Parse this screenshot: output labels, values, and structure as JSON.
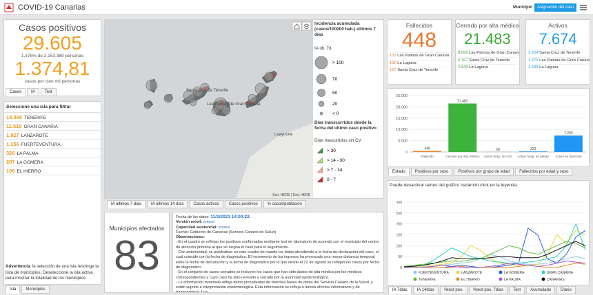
{
  "header": {
    "title": "COVID-19 Canarias",
    "filter_label": "Municipio",
    "button": "Asignación del caso"
  },
  "summary": {
    "title": "Casos positivos",
    "total": "29.605",
    "share": "1,375% de 2.153.389 personas",
    "rate": "1.374,81",
    "rate_label": "casos por cien mil personas",
    "tabs": [
      "Casos",
      "IA",
      "Test"
    ]
  },
  "islands": {
    "title": "Seleccione una isla para filtrar",
    "rows": [
      {
        "value": "14.368",
        "name": "TENERIFE"
      },
      {
        "value": "11.515",
        "name": "GRAN CANARIA"
      },
      {
        "value": "1.927",
        "name": "LANZAROTE"
      },
      {
        "value": "1.156",
        "name": "FUERTEVENTURA"
      },
      {
        "value": "326",
        "name": "LA PALMA"
      },
      {
        "value": "207",
        "name": "LA GOMERA"
      },
      {
        "value": "106",
        "name": "EL HIERRO"
      }
    ],
    "note_label": "Advertencia",
    "note": ": la selección de una isla restringe la lista de municipios. Deseleccione la isla activa para mostrar la totalidad de los municipios.",
    "tabs": [
      "Isla",
      "Municipios"
    ]
  },
  "map": {
    "labels": [
      "Santa Cruz de Tenerife",
      "Las Palmas de Gran Canaria",
      "Laayoune"
    ],
    "attribution": "Esri, HERE | Esri, HERE",
    "tabs": [
      "IA últimos 7 días",
      "IA últimos 14 días",
      "Casos activos",
      "Casos positivos",
      "% casos/población"
    ]
  },
  "legend": {
    "title1": "Incidencia acumulada (casos/100000 hab.) últimos 7 días",
    "layer1": "IA últ. 7d",
    "sizes": [
      "> 100",
      "70",
      "50",
      "20",
      "< 0"
    ],
    "title2": "Días transcurridos desde la fecha del último caso positivo",
    "layer2": "Días trascurridos sin CV",
    "classes": [
      {
        "label": "> 30",
        "color": "#3a9a3a"
      },
      {
        "label": "> 14 - 30",
        "color": "#a6d96a"
      },
      {
        "label": "> 7 - 14",
        "color": "#f4a582"
      },
      {
        "label": "0 - 7",
        "color": "#d6272b"
      }
    ]
  },
  "municipios": {
    "title": "Municipios afectados",
    "value": "83"
  },
  "notes": {
    "date_label": "Fecha de los datos:",
    "date": "11/1/2021 14:00:22.",
    "mobile_label": "Versión móvil:",
    "mobile_link": "enlace",
    "capacity_label": "Capacidad asistencial:",
    "capacity_link": "enlace",
    "source": "Fuente: Gobierno de Canarias (Servicio Canario de Salud)",
    "obs_title": "Observaciones:",
    "paragraphs": [
      "- En el cuadro se reflejan los positivos confirmados mediante test de laboratorio de acuerdo con el municipio del centro de atención primaria al que se asigna el caso para el seguimiento.",
      "- Con anterioridad, se publicaban en este cuadro de mando los datos atendiendo a la fecha de declaración del caso, el cual coincide con la fecha de diagnóstico. El incremento de los ingresos ha provocado una mayor distancia temporal entre la fecha de declaración y la fecha de diagnóstico por lo que desde el 22 de agosto se reflejan los casos por fecha de diagnóstico.",
      "- En el conjunto de casos cerrados se incluyen los casos que han sido dados de alta médica por los médicos correspondientes y cuyo caso ha sido revisado y cerrado por la autoridad epidemiológica.",
      "- La información mostrada refleja datos procedentes de distintas bases de datos del Servicio Canario de la Salud, y están sujetos a interpretación epidemiológica. Esta información se refleja a únicos efectos informativos y de transparencia. Los"
    ]
  },
  "kpis": [
    {
      "title": "Fallecidos",
      "value": "448",
      "color": "#e8782c",
      "rows": [
        {
          "value": "133",
          "name": "Las Palmas de Gran Canaria"
        },
        {
          "value": "130",
          "name": "La Laguna"
        },
        {
          "value": "127",
          "name": "Santa Cruz de Tenerife"
        }
      ]
    },
    {
      "title": "Cerrado por alta médica",
      "value": "21.483",
      "color": "#3aa935",
      "rows": [
        {
          "value": "8.056",
          "name": "Las Palmas de Gran Canaria"
        },
        {
          "value": "3.767",
          "name": "Santa Cruz de Tenerife"
        },
        {
          "value": "2.849",
          "name": "La Laguna"
        }
      ]
    },
    {
      "title": "Activos",
      "value": "7.674",
      "color": "#1e9be6",
      "rows": [
        {
          "value": "2.224",
          "name": "Santa Cruz de Tenerife"
        },
        {
          "value": "1.679",
          "name": "Las Palmas de Gran Canaria"
        },
        {
          "value": "1.639",
          "name": "La Laguna"
        }
      ]
    }
  ],
  "bar_chart": {
    "type": "bar",
    "categories": [
      "Fallecido",
      "Cerrado por alta médica",
      "Activo hosp. en UCI",
      "Activo hosp. en planta",
      "Activo en domicilio"
    ],
    "values": [
      448,
      21483,
      58,
      323,
      7293
    ],
    "value_labels": [
      "448",
      "21.483",
      "58",
      "323",
      "7.293"
    ],
    "colors": [
      "#e8852f",
      "#3db33d",
      "#8e8e8e",
      "#5aa7e8",
      "#2196f3"
    ],
    "ylim": [
      0,
      25000
    ],
    "yticks": [
      0,
      {
        "value": 5000,
        "label": "5.000"
      },
      {
        "value": 10000,
        "label": "10.000"
      },
      {
        "value": 15000,
        "label": "15.000"
      },
      {
        "value": 20000,
        "label": "20.000"
      },
      {
        "value": 25000,
        "label": "25.000"
      }
    ],
    "grid": true,
    "tabs": [
      "Estado",
      "Positivos por sexo",
      "Positivos por grupo de edad",
      "Fallecidos por edad y sexo"
    ]
  },
  "line_chart": {
    "type": "line",
    "hint": "Puede desactivar series del gráfico haciendo click en la leyenda.",
    "ylim": [
      0,
      300
    ],
    "yticks": [
      0,
      50,
      100,
      150,
      200,
      250,
      300
    ],
    "grid": true,
    "series": [
      {
        "name": "FUERTEVENTURA",
        "color": "#8ec9ee",
        "values": [
          1,
          2,
          3,
          5,
          10,
          15,
          20,
          25,
          40,
          60,
          50,
          30,
          20,
          15,
          15,
          20,
          30,
          40,
          50,
          40
        ]
      },
      {
        "name": "LANZAROTE",
        "color": "#e8d43a",
        "values": [
          1,
          2,
          5,
          10,
          15,
          20,
          50,
          100,
          80,
          40,
          20,
          15,
          10,
          10,
          15,
          60,
          150,
          110,
          170,
          150
        ]
      },
      {
        "name": "LA GOMERA",
        "color": "#1f5fd6",
        "values": [
          0,
          0,
          0,
          0,
          0,
          5,
          10,
          5,
          0,
          0,
          5,
          10,
          20,
          180,
          150,
          40,
          20,
          60,
          140,
          170
        ]
      },
      {
        "name": "GRAN CANARIA",
        "color": "#26d0c8",
        "values": [
          2,
          5,
          10,
          30,
          60,
          90,
          70,
          50,
          40,
          30,
          25,
          20,
          20,
          25,
          30,
          40,
          50,
          100,
          200,
          80
        ]
      },
      {
        "name": "TENERIFE",
        "color": "#5bbf3a",
        "values": [
          5,
          10,
          15,
          20,
          25,
          30,
          28,
          35,
          40,
          60,
          80,
          100,
          90,
          70,
          60,
          80,
          100,
          120,
          110,
          90
        ]
      },
      {
        "name": "EL HIERRO",
        "color": "#e7872b",
        "values": [
          0,
          0,
          0,
          0,
          0,
          0,
          5,
          0,
          0,
          0,
          0,
          0,
          5,
          10,
          5,
          0,
          0,
          10,
          20,
          15
        ]
      },
      {
        "name": "LA PALMA",
        "color": "#a05bd0",
        "values": [
          0,
          0,
          0,
          5,
          10,
          5,
          0,
          0,
          0,
          5,
          10,
          20,
          15,
          10,
          5,
          10,
          20,
          30,
          25,
          20
        ]
      },
      {
        "name": "CANARIAS",
        "color": "#111111",
        "values": [
          3,
          6,
          10,
          18,
          30,
          45,
          40,
          40,
          40,
          45,
          50,
          50,
          45,
          45,
          45,
          60,
          80,
          100,
          120,
          100
        ]
      }
    ],
    "tabs": [
      "IA 7días",
      "IA 14días",
      "%test pos.",
      "%test pos. 7días",
      "Test",
      "Acumulado",
      "Diario"
    ]
  }
}
